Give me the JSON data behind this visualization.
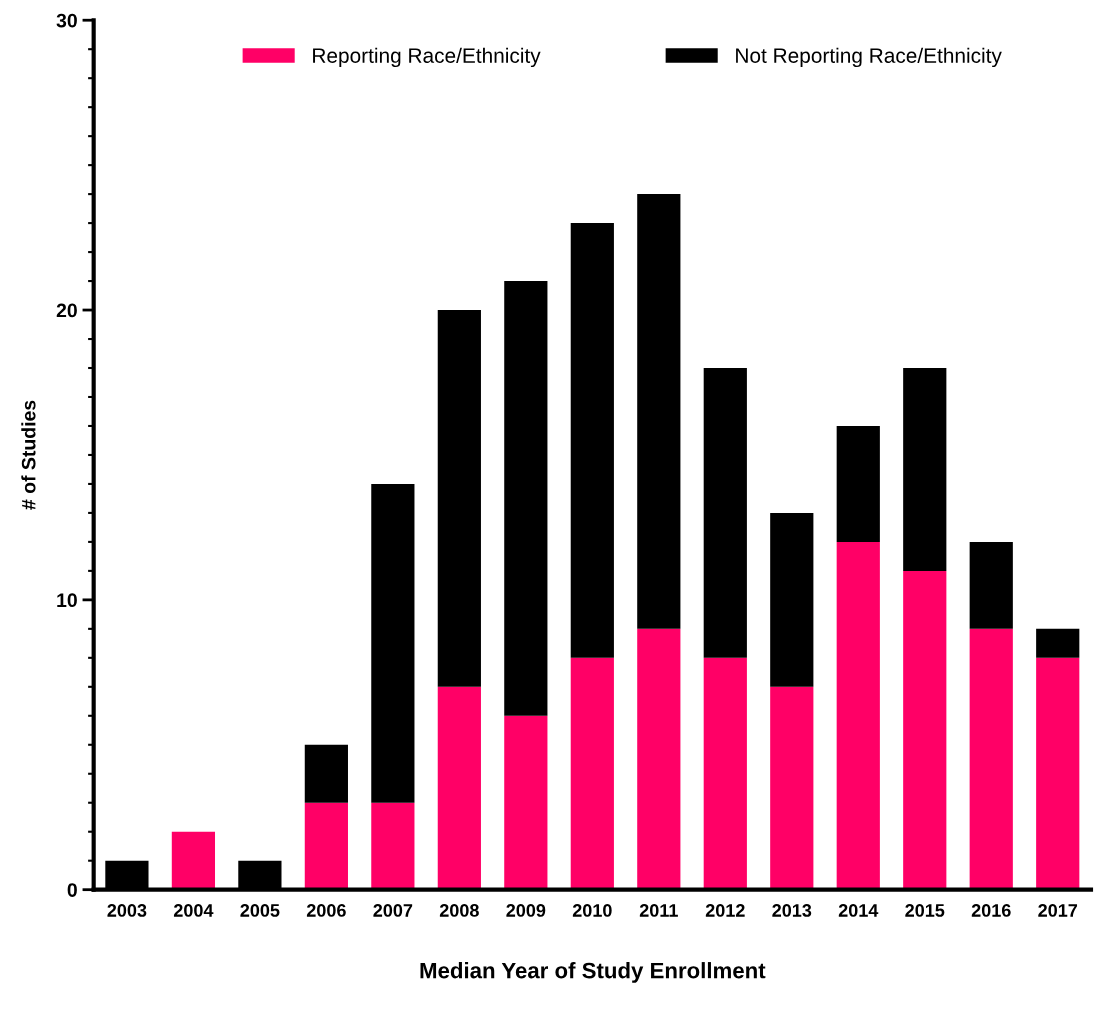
{
  "chart_data": {
    "type": "bar",
    "stacked": true,
    "xlabel": "Median Year of Study Enrollment",
    "ylabel": "# of Studies",
    "categories": [
      "2003",
      "2004",
      "2005",
      "2006",
      "2007",
      "2008",
      "2009",
      "2010",
      "2011",
      "2012",
      "2013",
      "2014",
      "2015",
      "2016",
      "2017"
    ],
    "series": [
      {
        "name": "Reporting Race/Ethnicity",
        "color": "#ff0066",
        "values": [
          0,
          2,
          0,
          3,
          3,
          7,
          6,
          8,
          9,
          8,
          7,
          12,
          11,
          9,
          8
        ]
      },
      {
        "name": "Not Reporting Race/Ethnicity",
        "color": "#000000",
        "values": [
          1,
          0,
          1,
          2,
          11,
          13,
          15,
          15,
          15,
          10,
          6,
          4,
          7,
          3,
          1
        ]
      }
    ],
    "ylim": [
      0,
      30
    ],
    "yticks": [
      0,
      {
        "value": 1,
        "label": null
      },
      {
        "value": 2,
        "label": null
      },
      {
        "value": 3,
        "label": null
      },
      {
        "value": 4,
        "label": null
      },
      {
        "value": 5,
        "label": null
      },
      {
        "value": 6,
        "label": null
      },
      {
        "value": 7,
        "label": null
      },
      {
        "value": 8,
        "label": null
      },
      {
        "value": 9,
        "label": null
      },
      10,
      {
        "value": 11,
        "label": null
      },
      {
        "value": 12,
        "label": null
      },
      {
        "value": 13,
        "label": null
      },
      {
        "value": 14,
        "label": null
      },
      {
        "value": 15,
        "label": null
      },
      {
        "value": 16,
        "label": null
      },
      {
        "value": 17,
        "label": null
      },
      {
        "value": 18,
        "label": null
      },
      {
        "value": 19,
        "label": null
      },
      20,
      {
        "value": 21,
        "label": null
      },
      {
        "value": 22,
        "label": null
      },
      {
        "value": 23,
        "label": null
      },
      {
        "value": 24,
        "label": null
      },
      {
        "value": 25,
        "label": null
      },
      {
        "value": 26,
        "label": null
      },
      {
        "value": 27,
        "label": null
      },
      {
        "value": 28,
        "label": null
      },
      {
        "value": 29,
        "label": null
      },
      30
    ],
    "grid": false,
    "legend": "top"
  }
}
